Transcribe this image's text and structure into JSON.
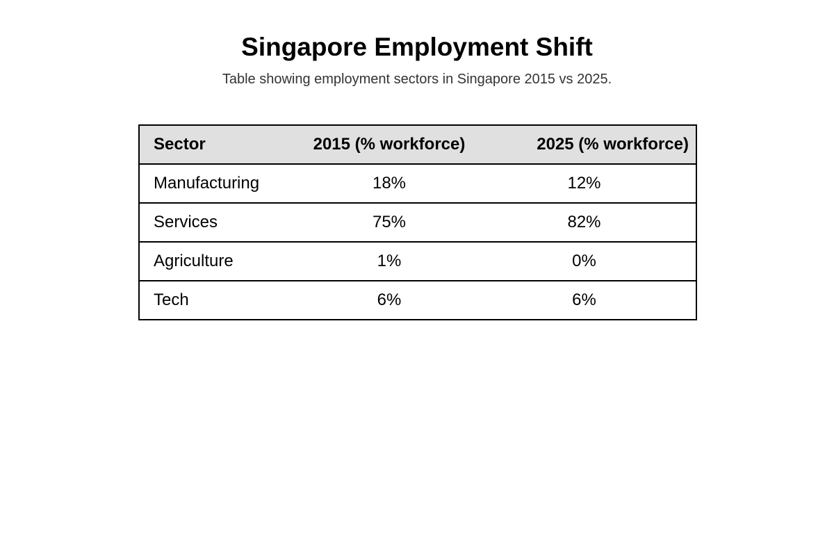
{
  "title": "Singapore Employment Shift",
  "subtitle": "Table showing employment sectors in Singapore 2015 vs 2025.",
  "chart_data": {
    "type": "table",
    "columns": [
      "Sector",
      "2015 (% workforce)",
      "2025 (% workforce)"
    ],
    "rows": [
      [
        "Manufacturing",
        "18%",
        "12%"
      ],
      [
        "Services",
        "75%",
        "82%"
      ],
      [
        "Agriculture",
        "1%",
        "0%"
      ],
      [
        "Tech",
        "6%",
        "6%"
      ]
    ]
  }
}
